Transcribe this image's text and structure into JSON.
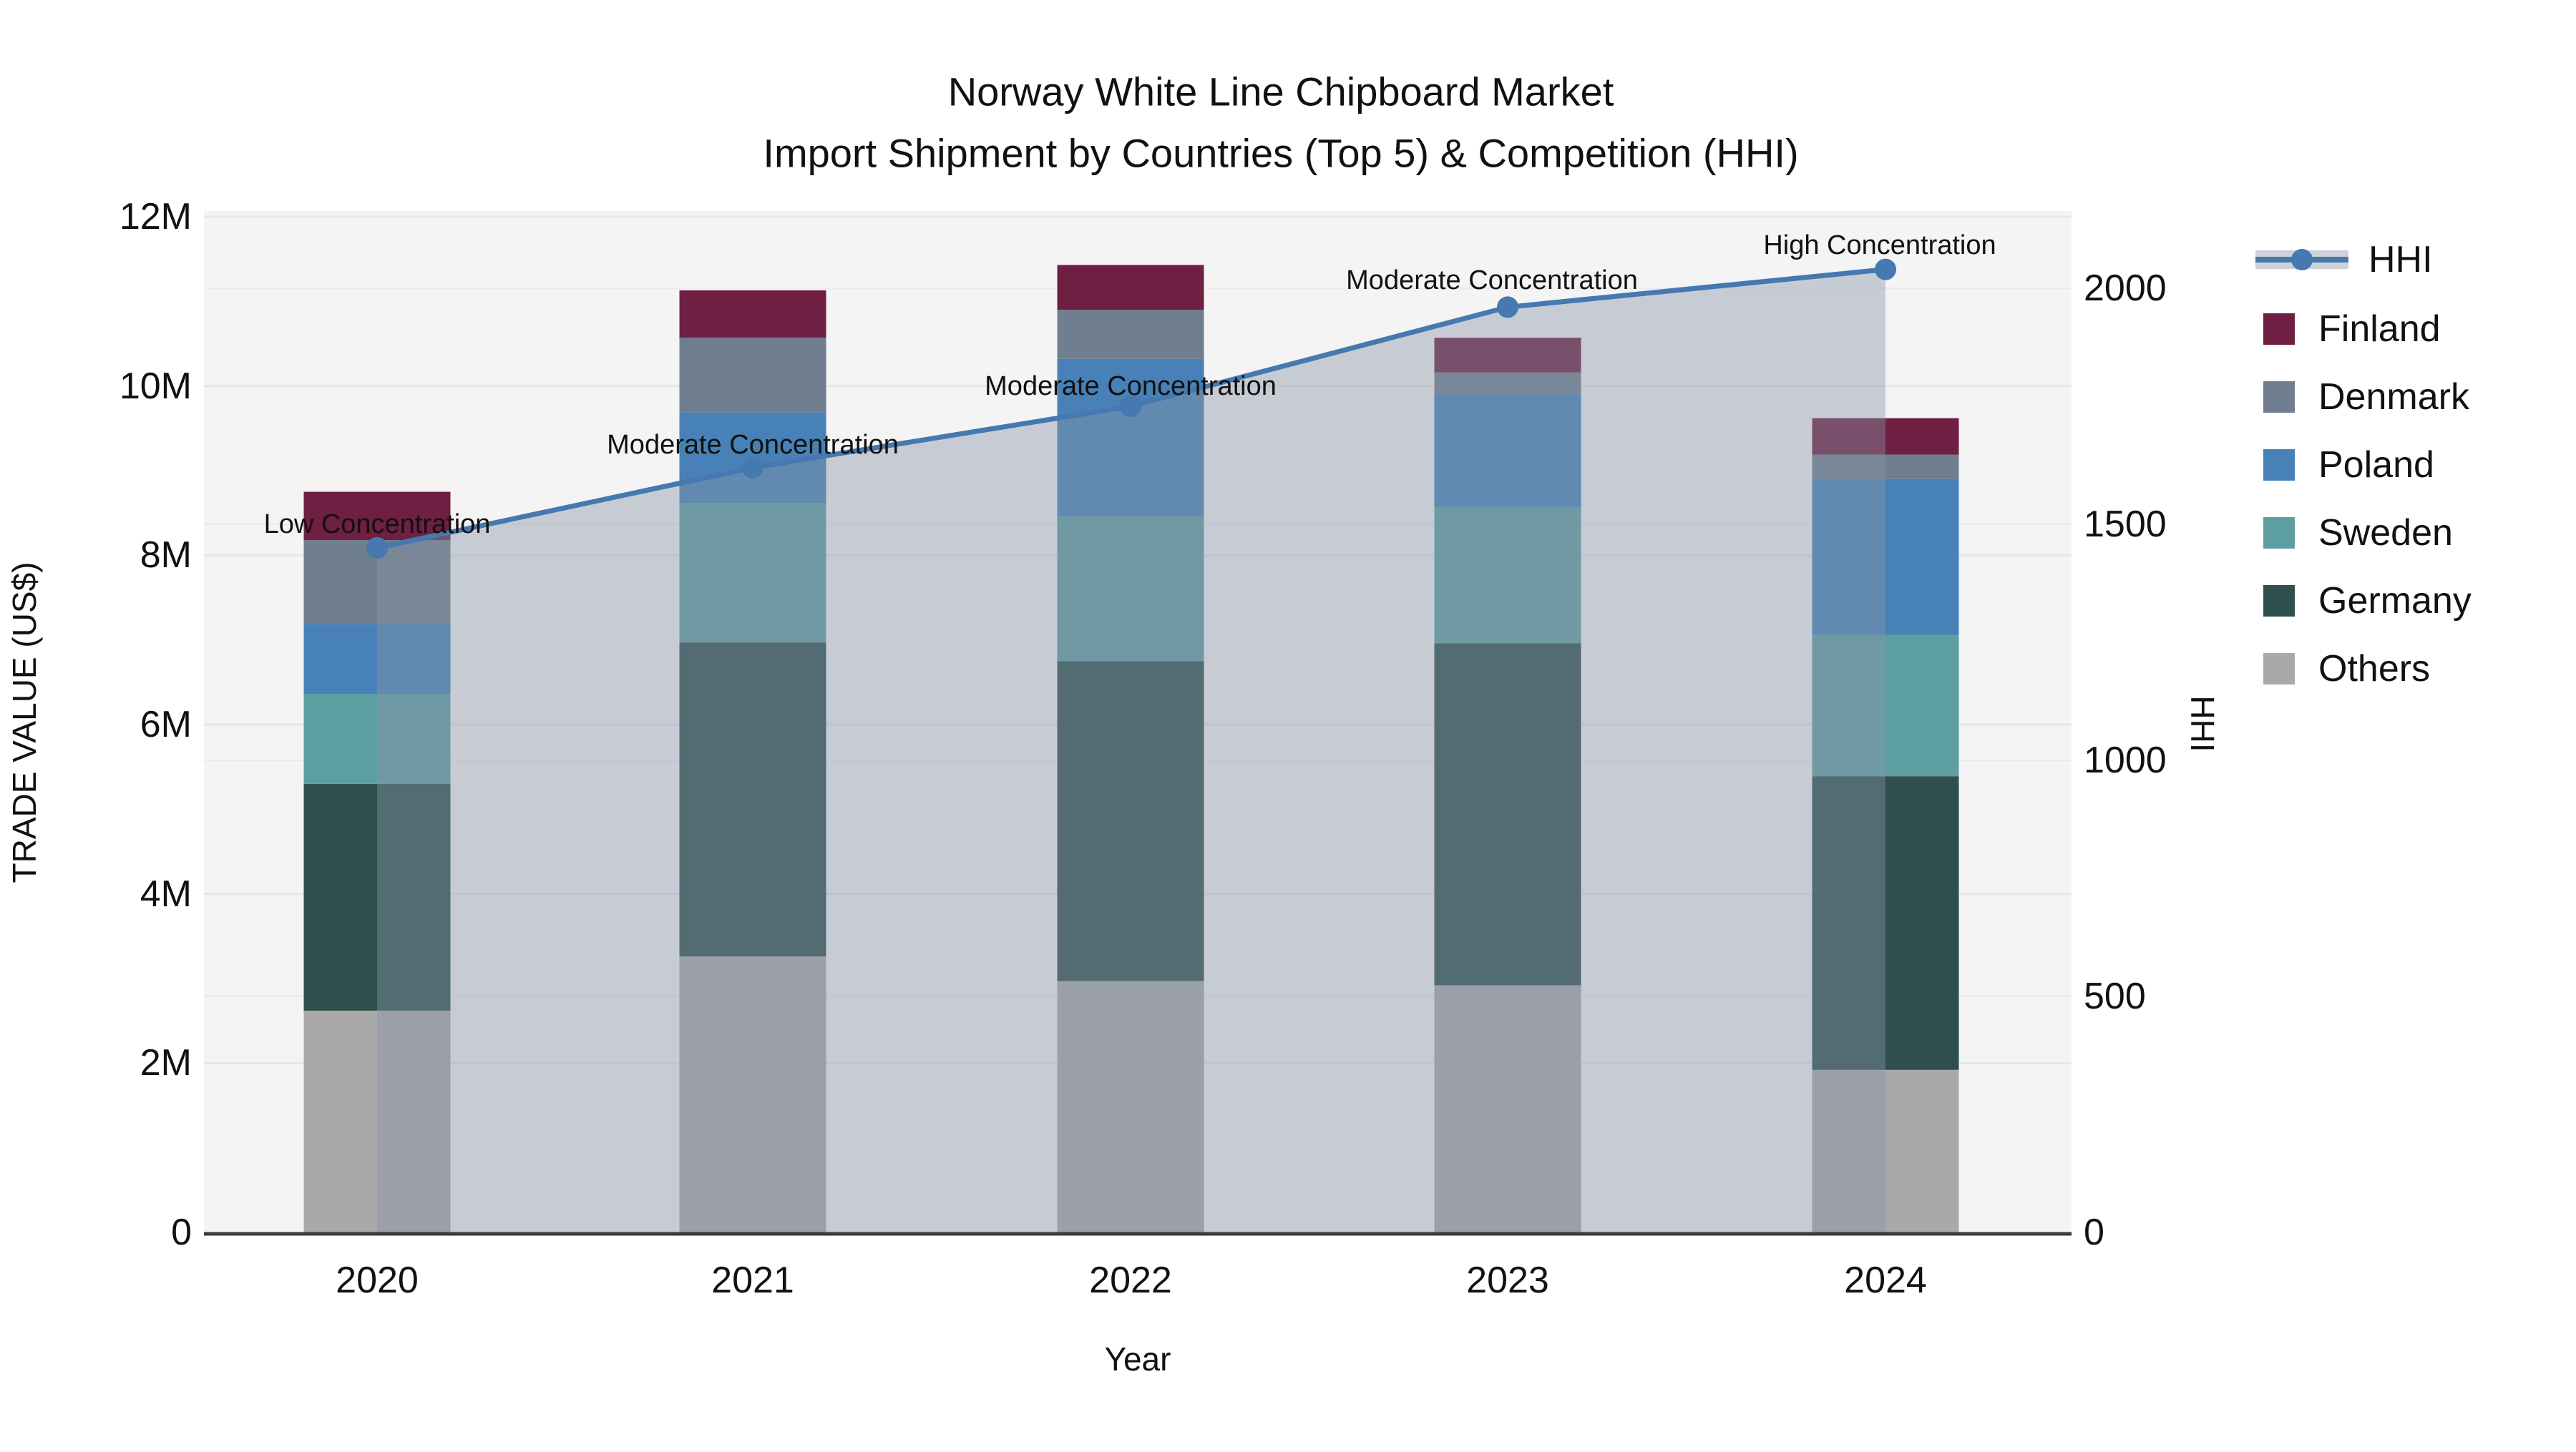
{
  "title": {
    "line1": "Norway White Line Chipboard Market",
    "line2": "Import Shipment by Countries (Top 5) & Competition (HHI)"
  },
  "axes": {
    "left": {
      "label": "TRADE VALUE (US$)",
      "ticks": [
        "0",
        "2M",
        "4M",
        "6M",
        "8M",
        "10M",
        "12M"
      ]
    },
    "right": {
      "label": "HHI",
      "ticks": [
        "0",
        "500",
        "1000",
        "1500",
        "2000"
      ]
    },
    "x": {
      "label": "Year",
      "ticks": [
        "2020",
        "2021",
        "2022",
        "2023",
        "2024"
      ]
    }
  },
  "legend": {
    "items": [
      {
        "label": "HHI",
        "swatch": "line-marker",
        "color": "#4579af"
      },
      {
        "label": "Finland",
        "swatch": "square",
        "color": "#6f1f42"
      },
      {
        "label": "Denmark",
        "swatch": "square",
        "color": "#6f7f90"
      },
      {
        "label": "Poland",
        "swatch": "square",
        "color": "#4781b7"
      },
      {
        "label": "Sweden",
        "swatch": "square",
        "color": "#5d9fa0"
      },
      {
        "label": "Germany",
        "swatch": "square",
        "color": "#2e4f4d"
      },
      {
        "label": "Others",
        "swatch": "square",
        "color": "#a9a9a9"
      }
    ]
  },
  "annotations": [
    {
      "year": "2020",
      "text": "Low Concentration"
    },
    {
      "year": "2021",
      "text": "Moderate Concentration"
    },
    {
      "year": "2022",
      "text": "Moderate Concentration"
    },
    {
      "year": "2023",
      "text": "Moderate Concentration"
    },
    {
      "year": "2024",
      "text": "High Concentration"
    }
  ],
  "chart_data": {
    "type": "combo: stacked-bar + line",
    "title": "Norway White Line Chipboard Market — Import Shipment by Countries (Top 5) & Competition (HHI)",
    "categories": [
      "2020",
      "2021",
      "2022",
      "2023",
      "2024"
    ],
    "bar_value_unit": "million US$",
    "series": [
      {
        "name": "Others",
        "color": "#a9a9a9",
        "values": [
          2.62,
          3.26,
          2.97,
          2.92,
          1.92
        ]
      },
      {
        "name": "Germany",
        "color": "#2e4f4d",
        "values": [
          2.68,
          3.71,
          3.78,
          4.04,
          3.47
        ]
      },
      {
        "name": "Sweden",
        "color": "#5d9fa0",
        "values": [
          1.06,
          1.65,
          1.71,
          1.61,
          1.67
        ]
      },
      {
        "name": "Poland",
        "color": "#4781b7",
        "values": [
          0.83,
          1.07,
          1.86,
          1.34,
          1.84
        ]
      },
      {
        "name": "Denmark",
        "color": "#6f7f90",
        "values": [
          0.99,
          0.88,
          0.58,
          0.25,
          0.29
        ]
      },
      {
        "name": "Finland",
        "color": "#6f1f42",
        "values": [
          0.57,
          0.56,
          0.53,
          0.41,
          0.43
        ]
      }
    ],
    "stack_order_bottom_to_top": [
      "Others",
      "Germany",
      "Sweden",
      "Poland",
      "Denmark",
      "Finland"
    ],
    "bar_totals_millions": [
      8.75,
      11.13,
      11.43,
      10.57,
      9.62
    ],
    "line": {
      "name": "HHI",
      "color": "#4579af",
      "area_fill": "rgba(137,148,166,0.42)",
      "values": [
        1450,
        1620,
        1750,
        1960,
        2040
      ]
    },
    "left_axis": {
      "label": "TRADE VALUE (US$)",
      "range_millions": [
        0,
        12.07
      ],
      "tick_step_millions": 2
    },
    "right_axis": {
      "label": "HHI",
      "range": [
        0,
        2160
      ],
      "tick_step": 500
    },
    "xlabel": "Year",
    "grid": true,
    "legend_position": "outside-right-top",
    "annotations": [
      "Low Concentration",
      "Moderate Concentration",
      "Moderate Concentration",
      "Moderate Concentration",
      "High Concentration"
    ]
  }
}
